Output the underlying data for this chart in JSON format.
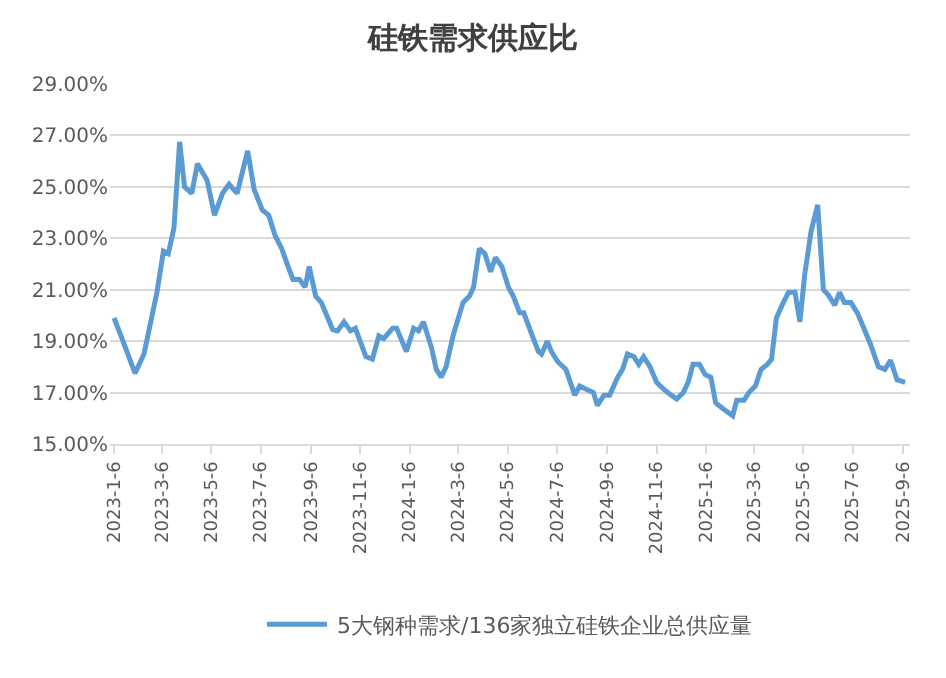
{
  "chart_data": {
    "type": "line",
    "title": "硅铁需求供应比",
    "x": [
      "2023-01-06",
      "2023-01-14",
      "2023-02-01",
      "2023-02-12",
      "2023-02-28",
      "2023-03-08",
      "2023-03-14",
      "2023-03-21",
      "2023-03-28",
      "2023-04-03",
      "2023-04-12",
      "2023-04-19",
      "2023-05-01",
      "2023-05-10",
      "2023-05-20",
      "2023-05-28",
      "2023-06-07",
      "2023-06-20",
      "2023-06-28",
      "2023-07-08",
      "2023-07-16",
      "2023-07-24",
      "2023-08-01",
      "2023-08-09",
      "2023-08-15",
      "2023-08-23",
      "2023-08-30",
      "2023-09-04",
      "2023-09-12",
      "2023-09-19",
      "2023-10-03",
      "2023-10-09",
      "2023-10-17",
      "2023-10-25",
      "2023-10-31",
      "2023-11-13",
      "2023-11-21",
      "2023-11-29",
      "2023-12-05",
      "2023-12-16",
      "2023-12-21",
      "2024-01-02",
      "2024-01-11",
      "2024-01-17",
      "2024-01-23",
      "2024-02-02",
      "2024-02-08",
      "2024-02-14",
      "2024-02-20",
      "2024-02-29",
      "2024-03-12",
      "2024-03-20",
      "2024-03-25",
      "2024-04-01",
      "2024-04-08",
      "2024-04-15",
      "2024-04-21",
      "2024-04-29",
      "2024-05-07",
      "2024-05-13",
      "2024-05-21",
      "2024-05-26",
      "2024-06-05",
      "2024-06-13",
      "2024-06-17",
      "2024-06-24",
      "2024-06-29",
      "2024-07-07",
      "2024-07-17",
      "2024-07-28",
      "2024-08-03",
      "2024-08-13",
      "2024-08-20",
      "2024-08-25",
      "2024-09-02",
      "2024-09-09",
      "2024-09-19",
      "2024-09-25",
      "2024-10-01",
      "2024-10-09",
      "2024-10-15",
      "2024-10-21",
      "2024-10-29",
      "2024-11-06",
      "2024-11-16",
      "2024-11-24",
      "2024-12-01",
      "2024-12-09",
      "2024-12-15",
      "2024-12-21",
      "2024-12-29",
      "2025-01-05",
      "2025-01-12",
      "2025-01-18",
      "2025-01-26",
      "2025-02-08",
      "2025-02-13",
      "2025-02-22",
      "2025-02-28",
      "2025-03-08",
      "2025-03-15",
      "2025-03-23",
      "2025-03-28",
      "2025-04-03",
      "2025-04-10",
      "2025-04-18",
      "2025-04-26",
      "2025-05-02",
      "2025-05-08",
      "2025-05-16",
      "2025-05-24",
      "2025-05-31",
      "2025-06-06",
      "2025-06-14",
      "2025-06-20",
      "2025-06-26",
      "2025-07-04",
      "2025-07-12",
      "2025-07-20",
      "2025-07-28",
      "2025-08-07",
      "2025-08-15",
      "2025-08-22",
      "2025-08-30",
      "2025-09-09"
    ],
    "series": [
      {
        "name": "5大钢种需求/136家独立硅铁企业总供应量",
        "color": "#5b9bd5",
        "values": [
          19.9,
          19.25,
          17.75,
          18.5,
          20.9,
          22.5,
          22.4,
          23.4,
          26.75,
          25.0,
          24.75,
          25.9,
          25.25,
          23.9,
          24.75,
          25.1,
          24.75,
          26.4,
          24.9,
          24.1,
          23.9,
          23.1,
          22.6,
          21.9,
          21.4,
          21.4,
          21.1,
          21.9,
          20.75,
          20.5,
          19.45,
          19.4,
          19.75,
          19.4,
          19.5,
          18.4,
          18.3,
          19.2,
          19.1,
          19.5,
          19.5,
          18.6,
          19.5,
          19.4,
          19.75,
          18.75,
          17.9,
          17.6,
          18.0,
          19.25,
          20.5,
          20.75,
          21.1,
          22.6,
          22.4,
          21.7,
          22.25,
          21.9,
          21.1,
          20.75,
          20.1,
          20.1,
          19.25,
          18.6,
          18.5,
          19.0,
          18.6,
          18.2,
          17.9,
          16.9,
          17.25,
          17.1,
          17.0,
          16.5,
          16.9,
          16.9,
          17.6,
          17.9,
          18.5,
          18.4,
          18.1,
          18.4,
          18.0,
          17.4,
          17.1,
          16.9,
          16.75,
          17.0,
          17.4,
          18.1,
          18.1,
          17.7,
          17.6,
          16.6,
          16.4,
          16.1,
          16.7,
          16.7,
          17.0,
          17.25,
          17.9,
          18.1,
          18.3,
          19.9,
          20.4,
          20.9,
          20.9,
          19.75,
          21.6,
          23.3,
          24.3,
          21.0,
          20.8,
          20.4,
          20.9,
          20.5,
          20.5,
          20.1,
          19.5,
          18.9,
          18.0,
          17.9,
          18.25,
          17.5,
          17.4
        ]
      }
    ],
    "xlim": [
      "2023-01-01",
      "2025-09-15"
    ],
    "xticks": [
      {
        "value": "2023-01-06",
        "label": "2023-1-6"
      },
      {
        "value": "2023-03-06",
        "label": "2023-3-6"
      },
      {
        "value": "2023-05-06",
        "label": "2023-5-6"
      },
      {
        "value": "2023-07-06",
        "label": "2023-7-6"
      },
      {
        "value": "2023-09-06",
        "label": "2023-9-6"
      },
      {
        "value": "2023-11-06",
        "label": "2023-11-6"
      },
      {
        "value": "2024-01-06",
        "label": "2024-1-6"
      },
      {
        "value": "2024-03-06",
        "label": "2024-3-6"
      },
      {
        "value": "2024-05-06",
        "label": "2024-5-6"
      },
      {
        "value": "2024-07-06",
        "label": "2024-7-6"
      },
      {
        "value": "2024-09-06",
        "label": "2024-9-6"
      },
      {
        "value": "2024-11-06",
        "label": "2024-11-6"
      },
      {
        "value": "2025-01-06",
        "label": "2025-1-6"
      },
      {
        "value": "2025-03-06",
        "label": "2025-3-6"
      },
      {
        "value": "2025-05-06",
        "label": "2025-5-6"
      },
      {
        "value": "2025-07-06",
        "label": "2025-7-6"
      },
      {
        "value": "2025-09-06",
        "label": "2025-9-6"
      }
    ],
    "ylim": [
      15,
      29
    ],
    "yticks": [
      {
        "value": 15,
        "label": "15.00%"
      },
      {
        "value": 17,
        "label": "17.00%"
      },
      {
        "value": 19,
        "label": "19.00%"
      },
      {
        "value": 21,
        "label": "21.00%"
      },
      {
        "value": 23,
        "label": "23.00%"
      },
      {
        "value": 25,
        "label": "25.00%"
      },
      {
        "value": 27,
        "label": "27.00%"
      },
      {
        "value": 29,
        "label": "29.00%"
      }
    ],
    "grid": "y",
    "legend": "bottom",
    "marker": "none",
    "line_style": "solid"
  }
}
